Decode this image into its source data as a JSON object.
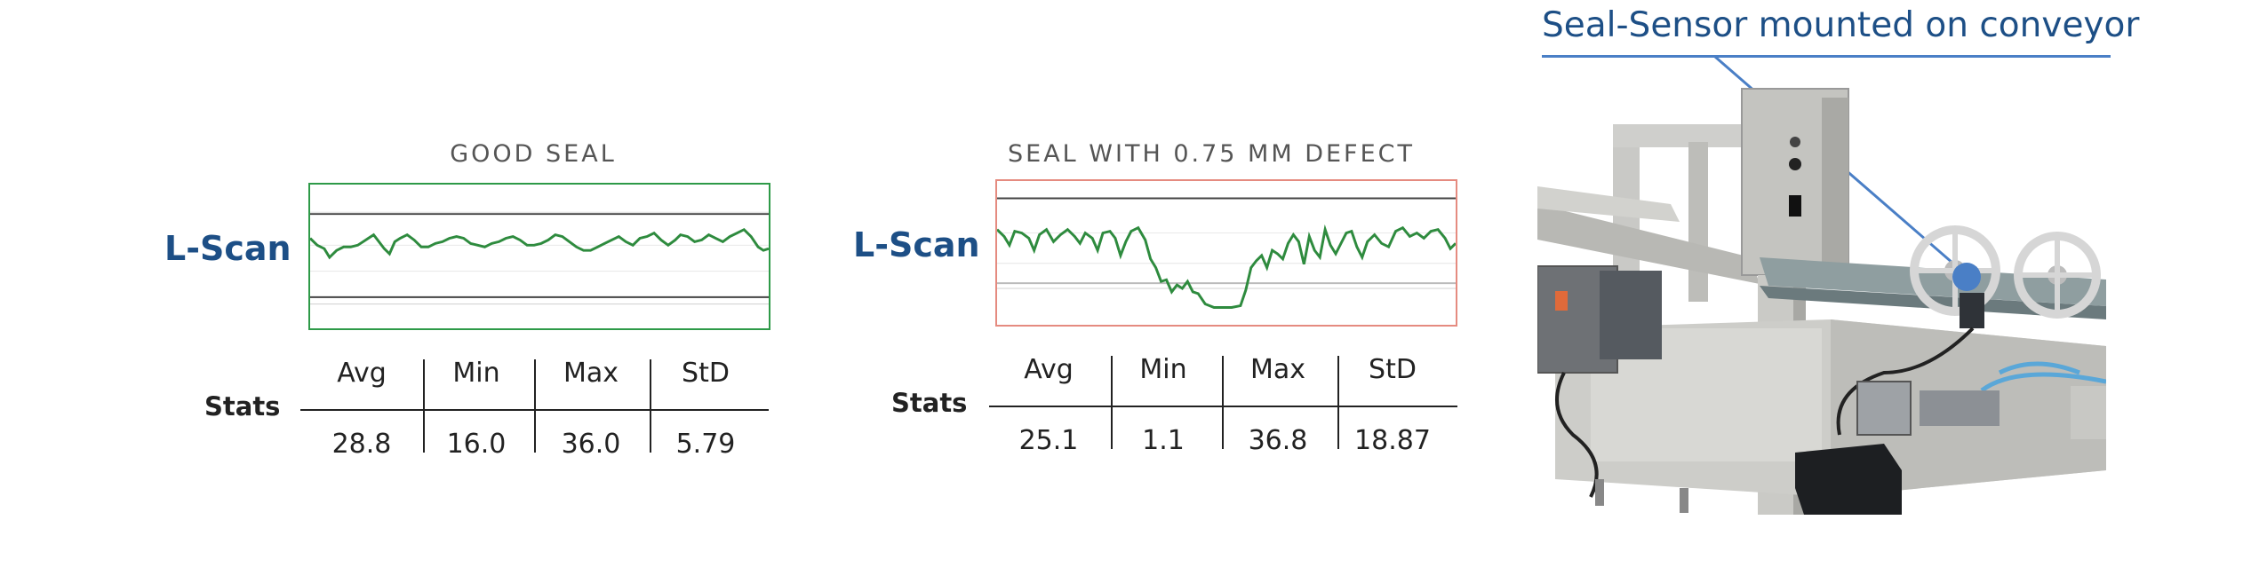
{
  "panels": [
    {
      "title": "GOOD SEAL",
      "signal_label": "L-Scan",
      "border_color": "#2e9a48",
      "stats_label": "Stats",
      "stats_headers": [
        "Avg",
        "Min",
        "Max",
        "StD"
      ],
      "stats_values": [
        "28.8",
        "16.0",
        "36.0",
        "5.79"
      ]
    },
    {
      "title": "SEAL WITH 0.75 MM DEFECT",
      "signal_label": "L-Scan",
      "border_color": "#e58b80",
      "stats_label": "Stats",
      "stats_headers": [
        "Avg",
        "Min",
        "Max",
        "StD"
      ],
      "stats_values": [
        "25.1",
        "1.1",
        "36.8",
        "18.87"
      ]
    }
  ],
  "photo": {
    "caption": "Seal-Sensor mounted on conveyor",
    "callout_color": "#4a7fc6"
  },
  "colors": {
    "trace": "#2e8b3e",
    "limit_line": "#444444",
    "accent_blue": "#1d4f86"
  }
}
